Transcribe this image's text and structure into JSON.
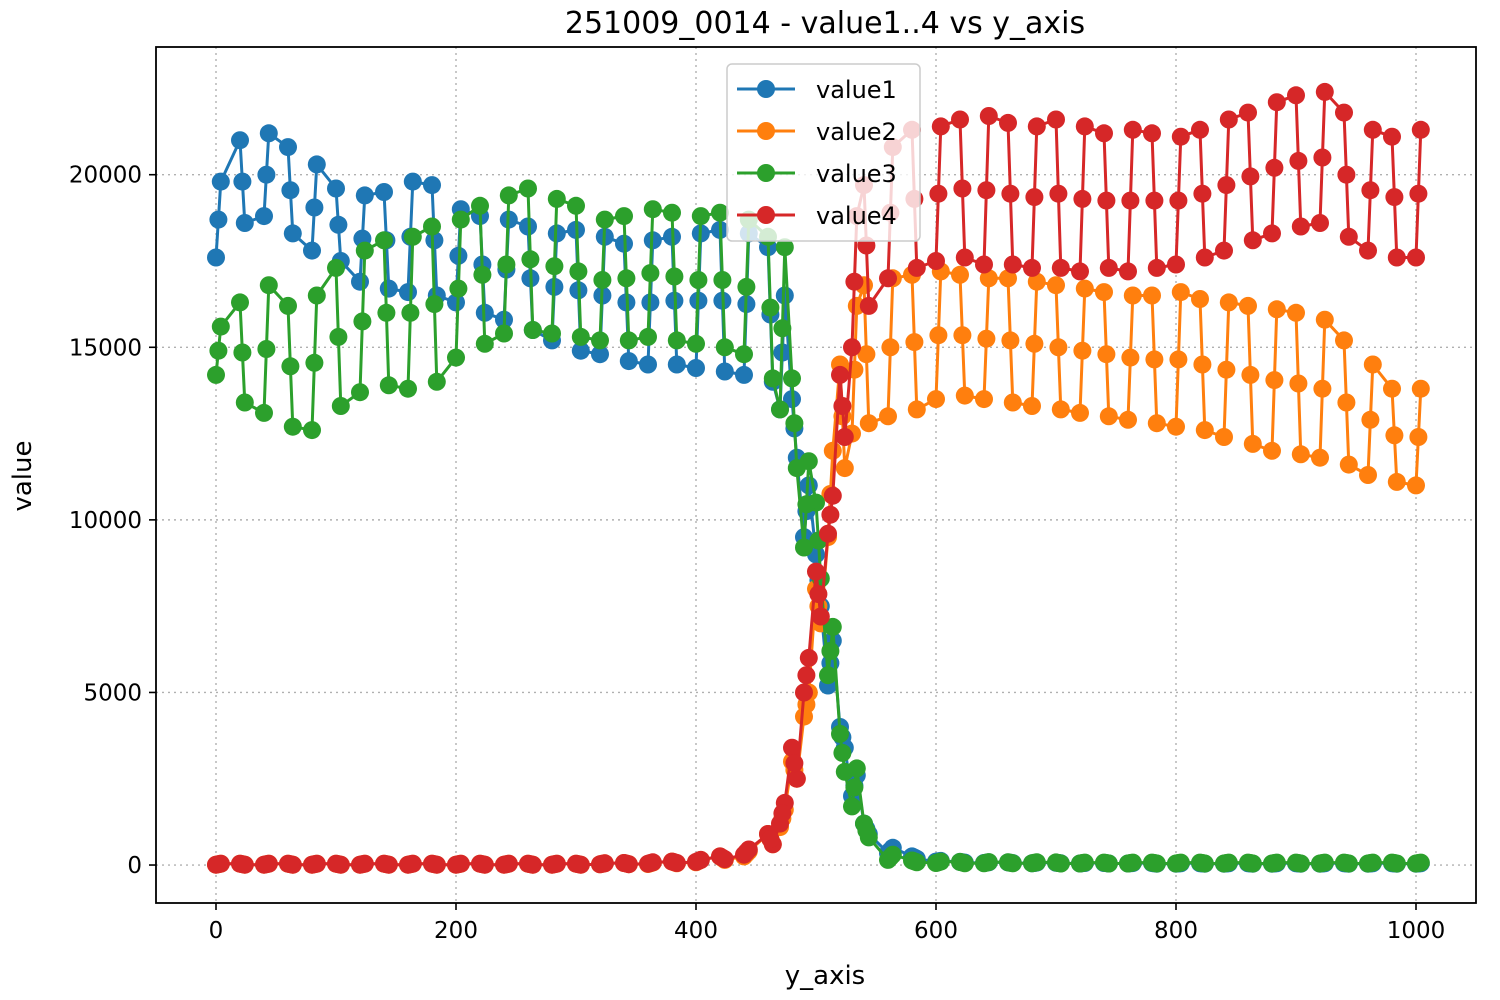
{
  "chart_data": {
    "type": "line",
    "title": "251009_0014 - value1..4 vs y_axis",
    "xlabel": "y_axis",
    "ylabel": "value",
    "xlim": [
      -50,
      1050
    ],
    "ylim": [
      -1100,
      23700
    ],
    "xticks": [
      0,
      200,
      400,
      600,
      800,
      1000
    ],
    "xtick_labels": [
      "0",
      "200",
      "400",
      "600",
      "800",
      "1000"
    ],
    "yticks": [
      0,
      5000,
      10000,
      15000,
      20000
    ],
    "ytick_labels": [
      "0",
      "5000",
      "10000",
      "15000",
      "20000"
    ],
    "grid": true,
    "legend_position": "top-center",
    "x": [
      0,
      20,
      40,
      60,
      80,
      100,
      120,
      140,
      160,
      180,
      200,
      220,
      240,
      260,
      280,
      300,
      320,
      340,
      360,
      380,
      400,
      420,
      440,
      460,
      470,
      480,
      490,
      500,
      510,
      520,
      530,
      540,
      560,
      580,
      600,
      620,
      640,
      660,
      680,
      700,
      720,
      740,
      760,
      780,
      800,
      820,
      840,
      860,
      880,
      900,
      920,
      940,
      960,
      980,
      1000
    ],
    "series": [
      {
        "name": "value1",
        "color": "#1f77b4",
        "upper": [
          19800,
          21000,
          21200,
          20800,
          20300,
          19600,
          19400,
          19500,
          19800,
          19700,
          19000,
          18800,
          18700,
          18500,
          18300,
          18400,
          18200,
          18000,
          18100,
          18200,
          18300,
          18400,
          18300,
          17900,
          16500,
          13500,
          11000,
          9000,
          6500,
          4000,
          2600,
          1200,
          500,
          250,
          120,
          90,
          80,
          75,
          70,
          65,
          60,
          60,
          55,
          55,
          50,
          50,
          50,
          50,
          50,
          50,
          50,
          50,
          50,
          50,
          50
        ],
        "lower": [
          17600,
          18600,
          18800,
          18300,
          17800,
          17500,
          16900,
          16700,
          16600,
          16500,
          16300,
          16000,
          15800,
          15500,
          15200,
          14900,
          14800,
          14600,
          14500,
          14500,
          14400,
          14300,
          14200,
          14000,
          13200,
          11800,
          9500,
          7500,
          5200,
          3400,
          2000,
          900,
          350,
          180,
          100,
          70,
          60,
          55,
          50,
          50,
          45,
          45,
          45,
          40,
          40,
          40,
          40,
          40,
          40,
          40,
          40,
          40,
          40,
          40,
          40
        ]
      },
      {
        "name": "value2",
        "color": "#ff7f0e",
        "upper": [
          40,
          40,
          40,
          40,
          40,
          40,
          40,
          40,
          40,
          40,
          40,
          40,
          40,
          40,
          40,
          40,
          50,
          60,
          70,
          100,
          150,
          250,
          400,
          900,
          1600,
          3000,
          5000,
          8000,
          12000,
          14500,
          16200,
          16800,
          17000,
          17100,
          17200,
          17100,
          17000,
          17000,
          16900,
          16800,
          16700,
          16600,
          16500,
          16500,
          16600,
          16400,
          16300,
          16200,
          16100,
          16000,
          15800,
          15200,
          14500,
          13800,
          13800
        ],
        "lower": [
          10,
          10,
          10,
          10,
          10,
          10,
          10,
          10,
          10,
          10,
          10,
          10,
          10,
          10,
          10,
          10,
          20,
          25,
          30,
          50,
          80,
          150,
          250,
          600,
          1100,
          2500,
          4300,
          7000,
          9500,
          11500,
          12500,
          12800,
          13000,
          13200,
          13500,
          13600,
          13500,
          13400,
          13300,
          13200,
          13100,
          13000,
          12900,
          12800,
          12700,
          12600,
          12400,
          12200,
          12000,
          11900,
          11800,
          11600,
          11300,
          11100,
          11000
        ]
      },
      {
        "name": "value3",
        "color": "#2ca02c",
        "upper": [
          15600,
          16300,
          16800,
          16200,
          16500,
          17300,
          17800,
          18100,
          18200,
          18500,
          18700,
          19100,
          19400,
          19600,
          19300,
          19100,
          18700,
          18800,
          19000,
          18900,
          18800,
          18900,
          18700,
          18200,
          17900,
          14100,
          11700,
          10500,
          6900,
          3800,
          2800,
          1200,
          300,
          130,
          100,
          90,
          85,
          80,
          80,
          75,
          70,
          70,
          70,
          70,
          70,
          70,
          70,
          70,
          70,
          70,
          70,
          70,
          70,
          70,
          70
        ],
        "lower": [
          14200,
          13400,
          13100,
          12700,
          12600,
          13300,
          13700,
          13900,
          13800,
          14000,
          14700,
          15100,
          15400,
          15500,
          15400,
          15300,
          15200,
          15200,
          15300,
          15200,
          15100,
          15000,
          14800,
          14100,
          13200,
          11500,
          9200,
          8300,
          5500,
          2700,
          1700,
          800,
          150,
          80,
          60,
          50,
          50,
          50,
          50,
          45,
          45,
          45,
          45,
          45,
          45,
          45,
          45,
          45,
          45,
          45,
          45,
          45,
          45,
          45,
          45
        ]
      },
      {
        "name": "value4",
        "color": "#d62728",
        "upper": [
          40,
          40,
          40,
          40,
          40,
          40,
          40,
          40,
          40,
          40,
          40,
          40,
          40,
          40,
          40,
          40,
          50,
          60,
          80,
          100,
          150,
          250,
          450,
          900,
          1800,
          3400,
          6000,
          8500,
          10700,
          14200,
          18800,
          19700,
          20800,
          21300,
          21400,
          21600,
          21700,
          21500,
          21400,
          21600,
          21400,
          21200,
          21300,
          21200,
          21100,
          21300,
          21600,
          21800,
          22100,
          22300,
          22400,
          21800,
          21300,
          21100,
          21300
        ],
        "lower": [
          10,
          10,
          10,
          10,
          10,
          10,
          10,
          10,
          10,
          10,
          10,
          10,
          10,
          10,
          10,
          10,
          20,
          25,
          40,
          60,
          90,
          170,
          300,
          600,
          1200,
          2500,
          5000,
          7200,
          9600,
          12400,
          15000,
          16200,
          17000,
          17300,
          17500,
          17600,
          17400,
          17400,
          17300,
          17300,
          17200,
          17300,
          17200,
          17300,
          17400,
          17600,
          17800,
          18100,
          18300,
          18500,
          18600,
          18200,
          17800,
          17600,
          17600
        ]
      }
    ]
  }
}
